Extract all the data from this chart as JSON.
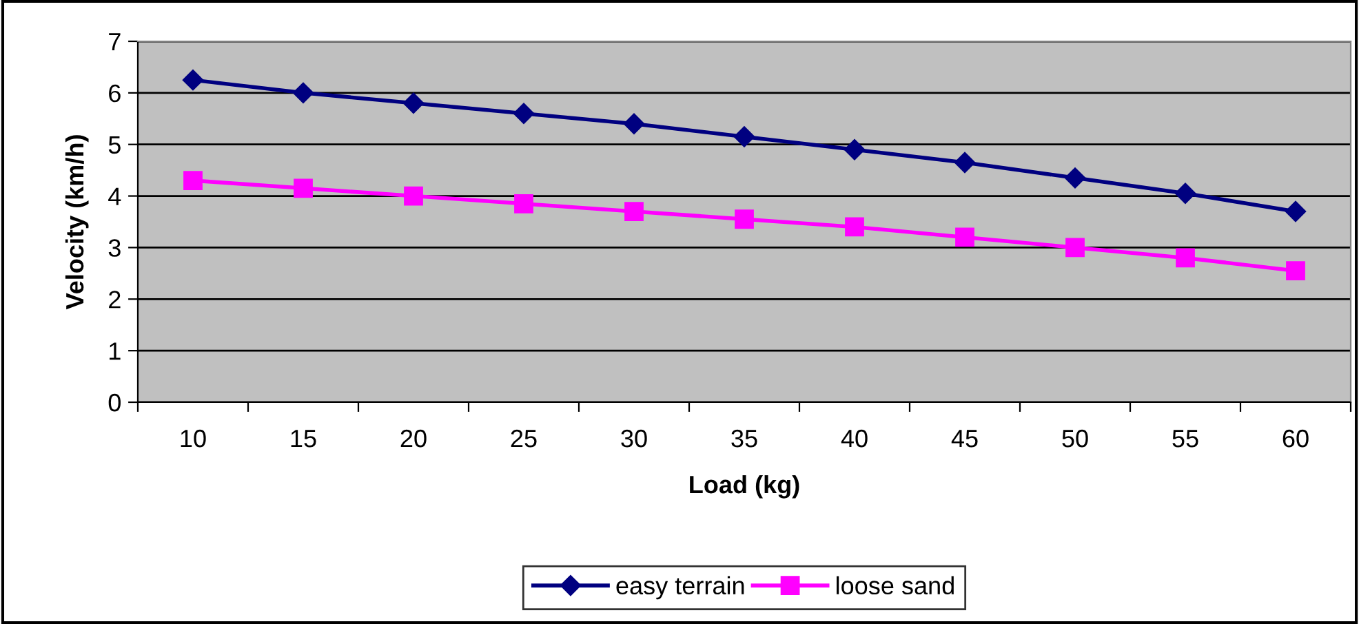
{
  "chart_data": {
    "type": "line",
    "xlabel": "Load (kg)",
    "ylabel": "Velocity (km/h)",
    "categories": [
      "10",
      "15",
      "20",
      "25",
      "30",
      "35",
      "40",
      "45",
      "50",
      "55",
      "60"
    ],
    "series": [
      {
        "name": "easy terrain",
        "color": "#000080",
        "marker": "diamond",
        "values": [
          6.25,
          6.0,
          5.8,
          5.6,
          5.4,
          5.15,
          4.9,
          4.65,
          4.35,
          4.05,
          3.7
        ]
      },
      {
        "name": "loose sand",
        "color": "#ff00ff",
        "marker": "square",
        "values": [
          4.3,
          4.15,
          4.0,
          3.85,
          3.7,
          3.55,
          3.4,
          3.2,
          3.0,
          2.8,
          2.55
        ]
      }
    ],
    "ylim": [
      0,
      7
    ],
    "yticks": [
      0,
      1,
      2,
      3,
      4,
      5,
      6,
      7
    ],
    "grid": "y",
    "legend": "bottom",
    "line_style": "solid"
  }
}
